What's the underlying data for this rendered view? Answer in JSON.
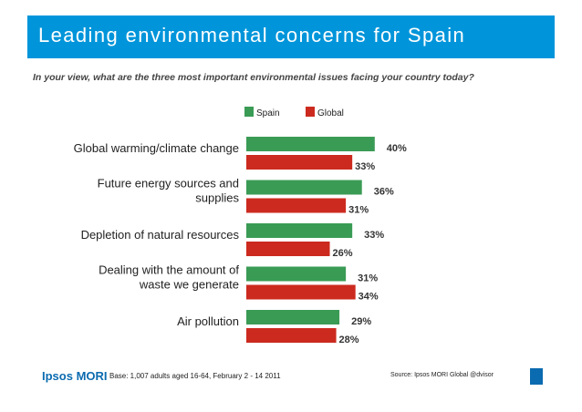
{
  "header": {
    "title": "Leading environmental concerns for Spain",
    "subtitle": "In your view, what are the three most important environmental issues facing your country today?"
  },
  "colors": {
    "header_bg": "#0095da",
    "spain": "#3a9b55",
    "global": "#cc2a1f"
  },
  "chart_data": {
    "type": "bar",
    "orientation": "horizontal",
    "title": "Leading environmental concerns for Spain",
    "categories": [
      [
        "Global warming/climate change"
      ],
      [
        "Future energy sources and",
        "supplies"
      ],
      [
        "Depletion of natural resources"
      ],
      [
        "Dealing with the amount of",
        "waste we generate"
      ],
      [
        "Air pollution"
      ]
    ],
    "series": [
      {
        "name": "Spain",
        "values": [
          40,
          36,
          33,
          31,
          29
        ]
      },
      {
        "name": "Global",
        "values": [
          33,
          31,
          26,
          34,
          28
        ]
      }
    ],
    "value_suffix": "%",
    "xlim": [
      0,
      50
    ],
    "legend": "top",
    "grid": false
  },
  "footer": {
    "logo_text": "Ipsos MORI",
    "base_note": "Base: 1,007 adults aged 16-64, February 2 - 14 2011",
    "source_note": "Source: Ipsos MORI Global @dvisor"
  }
}
